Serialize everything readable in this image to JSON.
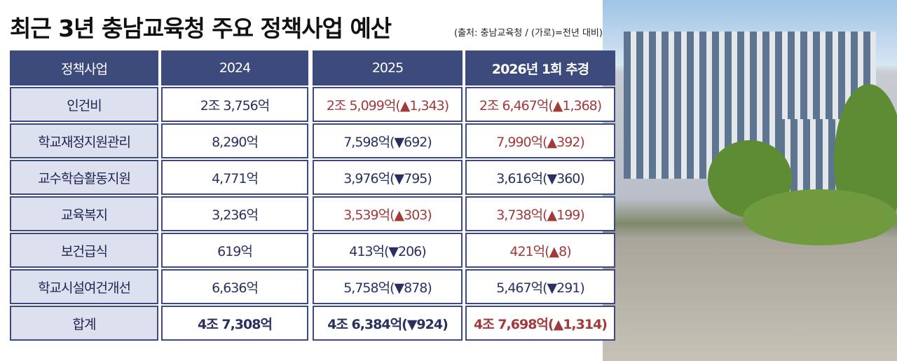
{
  "header": {
    "title": "최근 3년 충남교육청 주요 정책사업 예산",
    "note": "(출처: 충남교육청 / (가로)=전년 대비)"
  },
  "table": {
    "columns": [
      "정책사업",
      "2024",
      "2025",
      "2026년 1회 추경"
    ],
    "rows": [
      [
        "인건비",
        "2조 3,756억",
        "2조 5,099억(▲1,343)",
        "2조 6,467억(▲1,368)"
      ],
      [
        "학교재정지원관리",
        "8,290억",
        "7,598억(▼692)",
        "7,990억(▲392)"
      ],
      [
        "교수학습활동지원",
        "4,771억",
        "3,976억(▼795)",
        "3,616억(▼360)"
      ],
      [
        "교육복지",
        "3,236억",
        "3,539억(▲303)",
        "3,738억(▲199)"
      ],
      [
        "보건급식",
        "619억",
        "413억(▼206)",
        "421억(▲8)"
      ],
      [
        "학교시설여건개선",
        "6,636억",
        "5,758억(▼878)",
        "5,467억(▼291)"
      ],
      [
        "합계",
        "4조 7,308억",
        "4조 6,384억(▼924)",
        "4조 7,698억(▲1,314)"
      ]
    ]
  }
}
